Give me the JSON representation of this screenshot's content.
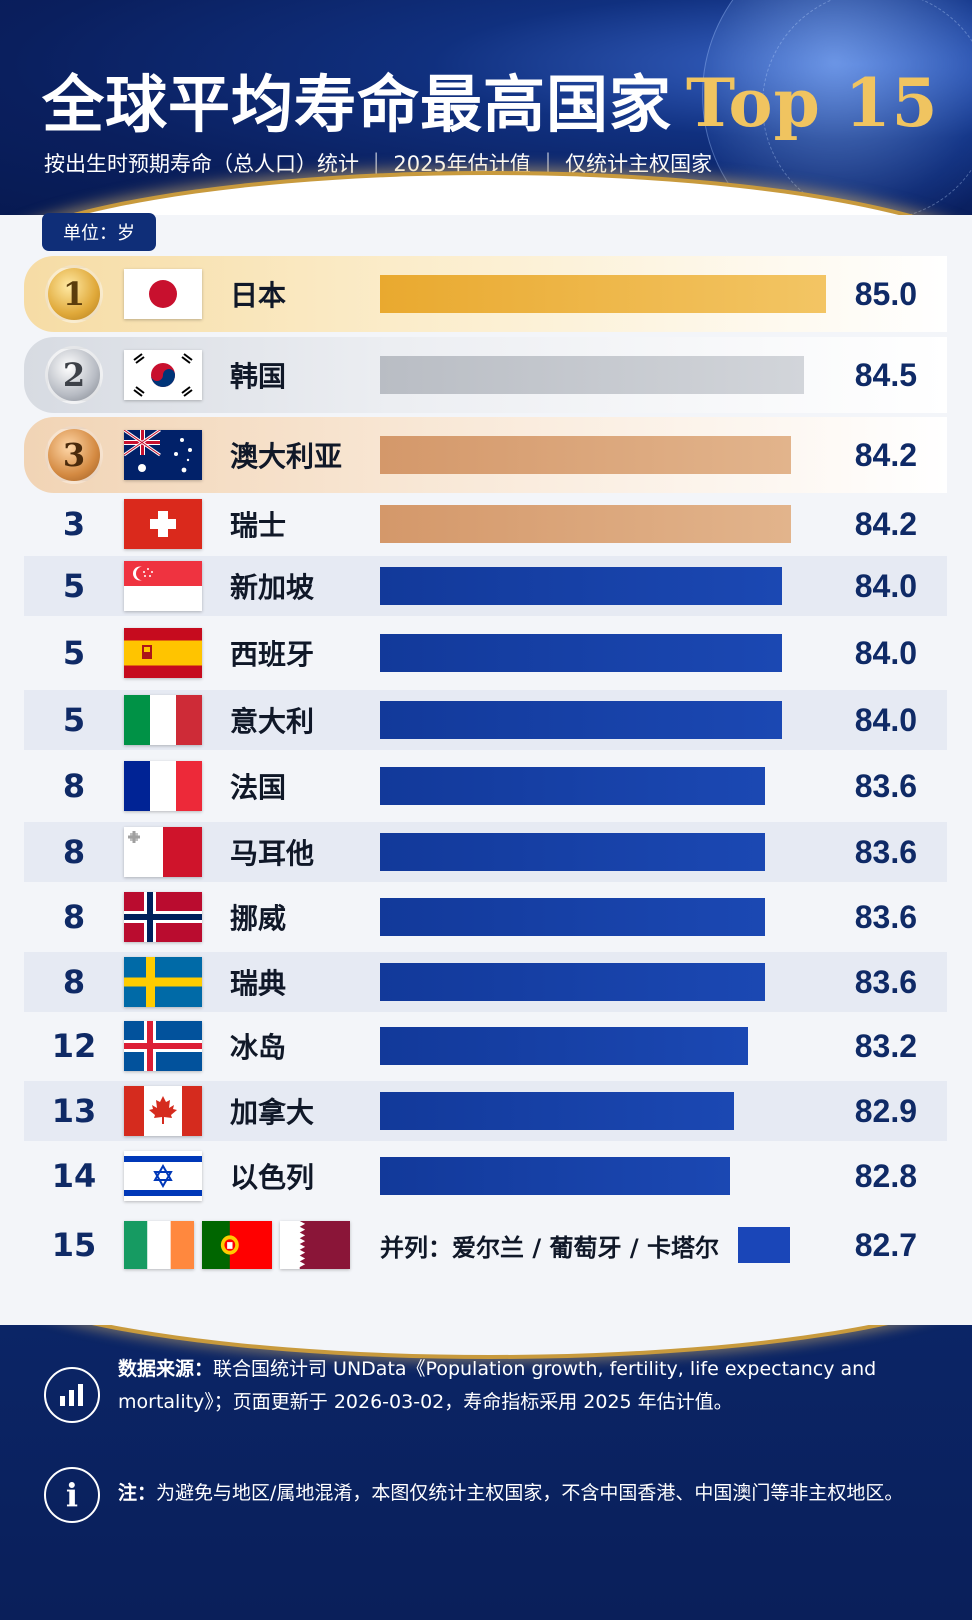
{
  "header": {
    "title_cn": "全球平均寿命最高国家",
    "title_en": "Top 15",
    "subtitle": "按出生时预期寿命（总人口）统计 ｜ 2025年估计值 ｜ 仅统计主权国家"
  },
  "unit_label": "单位：岁",
  "colors": {
    "gold": "#e8ad3a",
    "silver": "#c3c7cd",
    "bronze": "#d9a27a",
    "blue": "#123a9a",
    "navy": "#0b2566",
    "accent_gold": "#f0c460"
  },
  "chart_data": {
    "type": "bar",
    "orientation": "horizontal",
    "title": "全球平均寿命最高国家 Top 15",
    "unit": "岁",
    "rows": [
      {
        "rank": "1",
        "medal": "gold",
        "country": "日本",
        "flag": "japan-flag",
        "value": 85.0,
        "label": "85.0"
      },
      {
        "rank": "2",
        "medal": "silver",
        "country": "韩国",
        "flag": "south-korea-flag",
        "value": 84.5,
        "label": "84.5"
      },
      {
        "rank": "3",
        "medal": "bronze",
        "country": "澳大利亚",
        "flag": "australia-flag",
        "value": 84.2,
        "label": "84.2"
      },
      {
        "rank": "3",
        "medal": "none",
        "country": "瑞士",
        "flag": "switzerland-flag",
        "value": 84.2,
        "label": "84.2"
      },
      {
        "rank": "5",
        "medal": "none",
        "country": "新加坡",
        "flag": "singapore-flag",
        "value": 84.0,
        "label": "84.0"
      },
      {
        "rank": "5",
        "medal": "none",
        "country": "西班牙",
        "flag": "spain-flag",
        "value": 84.0,
        "label": "84.0"
      },
      {
        "rank": "5",
        "medal": "none",
        "country": "意大利",
        "flag": "italy-flag",
        "value": 84.0,
        "label": "84.0"
      },
      {
        "rank": "8",
        "medal": "none",
        "country": "法国",
        "flag": "france-flag",
        "value": 83.6,
        "label": "83.6"
      },
      {
        "rank": "8",
        "medal": "none",
        "country": "马耳他",
        "flag": "malta-flag",
        "value": 83.6,
        "label": "83.6"
      },
      {
        "rank": "8",
        "medal": "none",
        "country": "挪威",
        "flag": "norway-flag",
        "value": 83.6,
        "label": "83.6"
      },
      {
        "rank": "8",
        "medal": "none",
        "country": "瑞典",
        "flag": "sweden-flag",
        "value": 83.6,
        "label": "83.6"
      },
      {
        "rank": "12",
        "medal": "none",
        "country": "冰岛",
        "flag": "iceland-flag",
        "value": 83.2,
        "label": "83.2"
      },
      {
        "rank": "13",
        "medal": "none",
        "country": "加拿大",
        "flag": "canada-flag",
        "value": 82.9,
        "label": "82.9"
      },
      {
        "rank": "14",
        "medal": "none",
        "country": "以色列",
        "flag": "israel-flag",
        "value": 82.8,
        "label": "82.8"
      },
      {
        "rank": "15",
        "medal": "none",
        "country": "并列：爱尔兰 / 葡萄牙 / 卡塔尔",
        "flags": [
          "ireland-flag",
          "portugal-flag",
          "qatar-flag"
        ],
        "value": 82.7,
        "label": "82.7"
      }
    ]
  },
  "footer": {
    "source_label": "数据来源：",
    "source_text": "联合国统计司 UNData《Population growth, fertility, life expectancy and mortality》；页面更新于 2026-03-02，寿命指标采用 2025 年估计值。",
    "note_label": "注：",
    "note_text": "为避免与地区/属地混淆，本图仅统计主权国家，不含中国香港、中国澳门等非主权地区。",
    "source_icon": "bar-chart-icon",
    "note_icon": "info-icon"
  }
}
